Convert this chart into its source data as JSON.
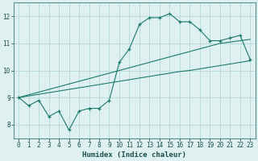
{
  "xlabel": "Humidex (Indice chaleur)",
  "background_color": "#dff0f0",
  "grid_color": "#b8dcdc",
  "line_color": "#1a7a6e",
  "x_data": [
    0,
    1,
    2,
    3,
    4,
    5,
    6,
    7,
    8,
    9,
    10,
    11,
    12,
    13,
    14,
    15,
    16,
    17,
    18,
    19,
    20,
    21,
    22,
    23
  ],
  "y_main": [
    9.0,
    8.7,
    8.9,
    8.3,
    8.5,
    7.8,
    8.5,
    8.6,
    8.6,
    8.9,
    10.3,
    10.8,
    11.7,
    11.95,
    11.95,
    12.1,
    11.8,
    11.8,
    11.5,
    11.1,
    11.1,
    11.2,
    11.3,
    10.4
  ],
  "y_lin_low": [
    9.0,
    9.06,
    9.12,
    9.18,
    9.24,
    9.3,
    9.36,
    9.42,
    9.48,
    9.54,
    9.6,
    9.66,
    9.72,
    9.78,
    9.84,
    9.9,
    9.96,
    10.0,
    10.06,
    10.12,
    10.18,
    10.24,
    10.3,
    10.36
  ],
  "y_lin_high": [
    9.0,
    9.1,
    9.2,
    9.3,
    9.4,
    9.5,
    9.6,
    9.7,
    9.8,
    9.9,
    10.0,
    10.1,
    10.2,
    10.3,
    10.4,
    10.5,
    10.6,
    10.7,
    10.8,
    10.9,
    11.0,
    11.05,
    11.1,
    11.15
  ],
  "xlim": [
    -0.5,
    23.5
  ],
  "ylim": [
    7.5,
    12.5
  ],
  "yticks": [
    8,
    9,
    10,
    11,
    12
  ],
  "xticks": [
    0,
    1,
    2,
    3,
    4,
    5,
    6,
    7,
    8,
    9,
    10,
    11,
    12,
    13,
    14,
    15,
    16,
    17,
    18,
    19,
    20,
    21,
    22,
    23
  ]
}
